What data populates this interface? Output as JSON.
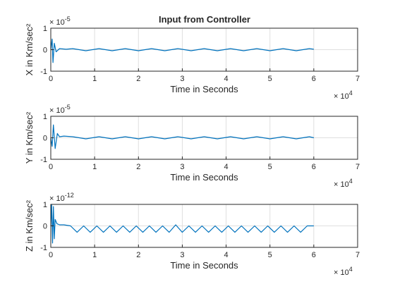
{
  "figure": {
    "background": "#ffffff",
    "series_color": "#0072bd",
    "grid_color": "#dfdfdf",
    "axis_color": "#262626"
  },
  "chart_data": [
    {
      "type": "line",
      "title": "Input from Controller",
      "xlabel": "Time in Seconds",
      "ylabel": "X in Km/sec²",
      "x_multiplier": "× 10^4",
      "y_multiplier": "× 10^-5",
      "xlim": [
        0,
        7
      ],
      "ylim": [
        -1,
        1
      ],
      "xticks": [
        "0",
        "1",
        "2",
        "3",
        "4",
        "5",
        "6",
        "7"
      ],
      "yticks": [
        "-1",
        "0",
        "1"
      ],
      "grid": true,
      "series": [
        {
          "x": [
            0,
            0.03,
            0.05,
            0.08,
            0.12,
            0.2,
            0.35,
            0.5,
            0.8,
            1.1,
            1.4,
            1.7,
            2.0,
            2.3,
            2.6,
            2.9,
            3.2,
            3.5,
            3.8,
            4.1,
            4.4,
            4.7,
            5.0,
            5.3,
            5.6,
            5.9,
            6.0
          ],
          "y": [
            0,
            0.5,
            -0.6,
            0.3,
            -0.1,
            0.05,
            0.02,
            0.05,
            -0.05,
            0.05,
            -0.05,
            0.05,
            -0.05,
            0.05,
            -0.05,
            0.05,
            -0.05,
            0.05,
            -0.05,
            0.05,
            -0.05,
            0.05,
            -0.05,
            0.05,
            -0.05,
            0.05,
            0.02
          ]
        }
      ]
    },
    {
      "type": "line",
      "title": "",
      "xlabel": "Time in Seconds",
      "ylabel": "Y in Km/sec²",
      "x_multiplier": "× 10^4",
      "y_multiplier": "× 10^-5",
      "xlim": [
        0,
        7
      ],
      "ylim": [
        -1,
        1
      ],
      "xticks": [
        "0",
        "1",
        "2",
        "3",
        "4",
        "5",
        "6",
        "7"
      ],
      "yticks": [
        "-1",
        "0",
        "1"
      ],
      "grid": true,
      "series": [
        {
          "x": [
            0,
            0.03,
            0.06,
            0.1,
            0.15,
            0.2,
            0.3,
            0.5,
            0.8,
            1.1,
            1.4,
            1.7,
            2.0,
            2.3,
            2.6,
            2.9,
            3.2,
            3.5,
            3.8,
            4.1,
            4.4,
            4.7,
            5.0,
            5.3,
            5.6,
            5.9,
            6.0
          ],
          "y": [
            0,
            -0.4,
            0.6,
            -0.5,
            0.2,
            0.05,
            0.08,
            0.05,
            -0.05,
            0.05,
            -0.05,
            0.05,
            -0.05,
            0.05,
            -0.05,
            0.05,
            -0.05,
            0.05,
            -0.05,
            0.05,
            -0.05,
            0.05,
            -0.05,
            0.05,
            -0.05,
            0.05,
            0.0
          ]
        }
      ]
    },
    {
      "type": "line",
      "title": "",
      "xlabel": "Time in Seconds",
      "ylabel": "Z in Km/sec²",
      "x_multiplier": "× 10^4",
      "y_multiplier": "× 10^-12",
      "xlim": [
        0,
        7
      ],
      "ylim": [
        -1,
        1
      ],
      "xticks": [
        "0",
        "1",
        "2",
        "3",
        "4",
        "5",
        "6",
        "7"
      ],
      "yticks": [
        "-1",
        "0",
        "1"
      ],
      "grid": true,
      "series": [
        {
          "x": [
            0,
            0.02,
            0.04,
            0.06,
            0.08,
            0.1,
            0.14,
            0.2,
            0.3,
            0.45,
            0.6,
            0.75,
            0.9,
            1.05,
            1.2,
            1.35,
            1.5,
            1.65,
            1.8,
            1.95,
            2.1,
            2.25,
            2.4,
            2.55,
            2.7,
            2.85,
            3.0,
            3.15,
            3.3,
            3.45,
            3.6,
            3.75,
            3.9,
            4.05,
            4.2,
            4.35,
            4.5,
            4.65,
            4.8,
            4.95,
            5.1,
            5.25,
            5.4,
            5.55,
            5.7,
            5.85,
            6.0
          ],
          "y": [
            0,
            1.0,
            -0.8,
            0.9,
            -0.6,
            0.3,
            0.1,
            0.05,
            0.05,
            0.0,
            -0.3,
            0.0,
            -0.3,
            0.0,
            -0.3,
            0.0,
            -0.3,
            0.0,
            -0.3,
            0.0,
            -0.3,
            0.0,
            -0.3,
            0.0,
            -0.3,
            0.05,
            -0.3,
            0.0,
            -0.3,
            0.0,
            -0.3,
            0.0,
            -0.3,
            0.0,
            -0.3,
            0.0,
            -0.3,
            0.0,
            -0.3,
            0.0,
            -0.3,
            0.0,
            -0.3,
            0.0,
            -0.3,
            0.0,
            0.0
          ]
        }
      ]
    }
  ]
}
